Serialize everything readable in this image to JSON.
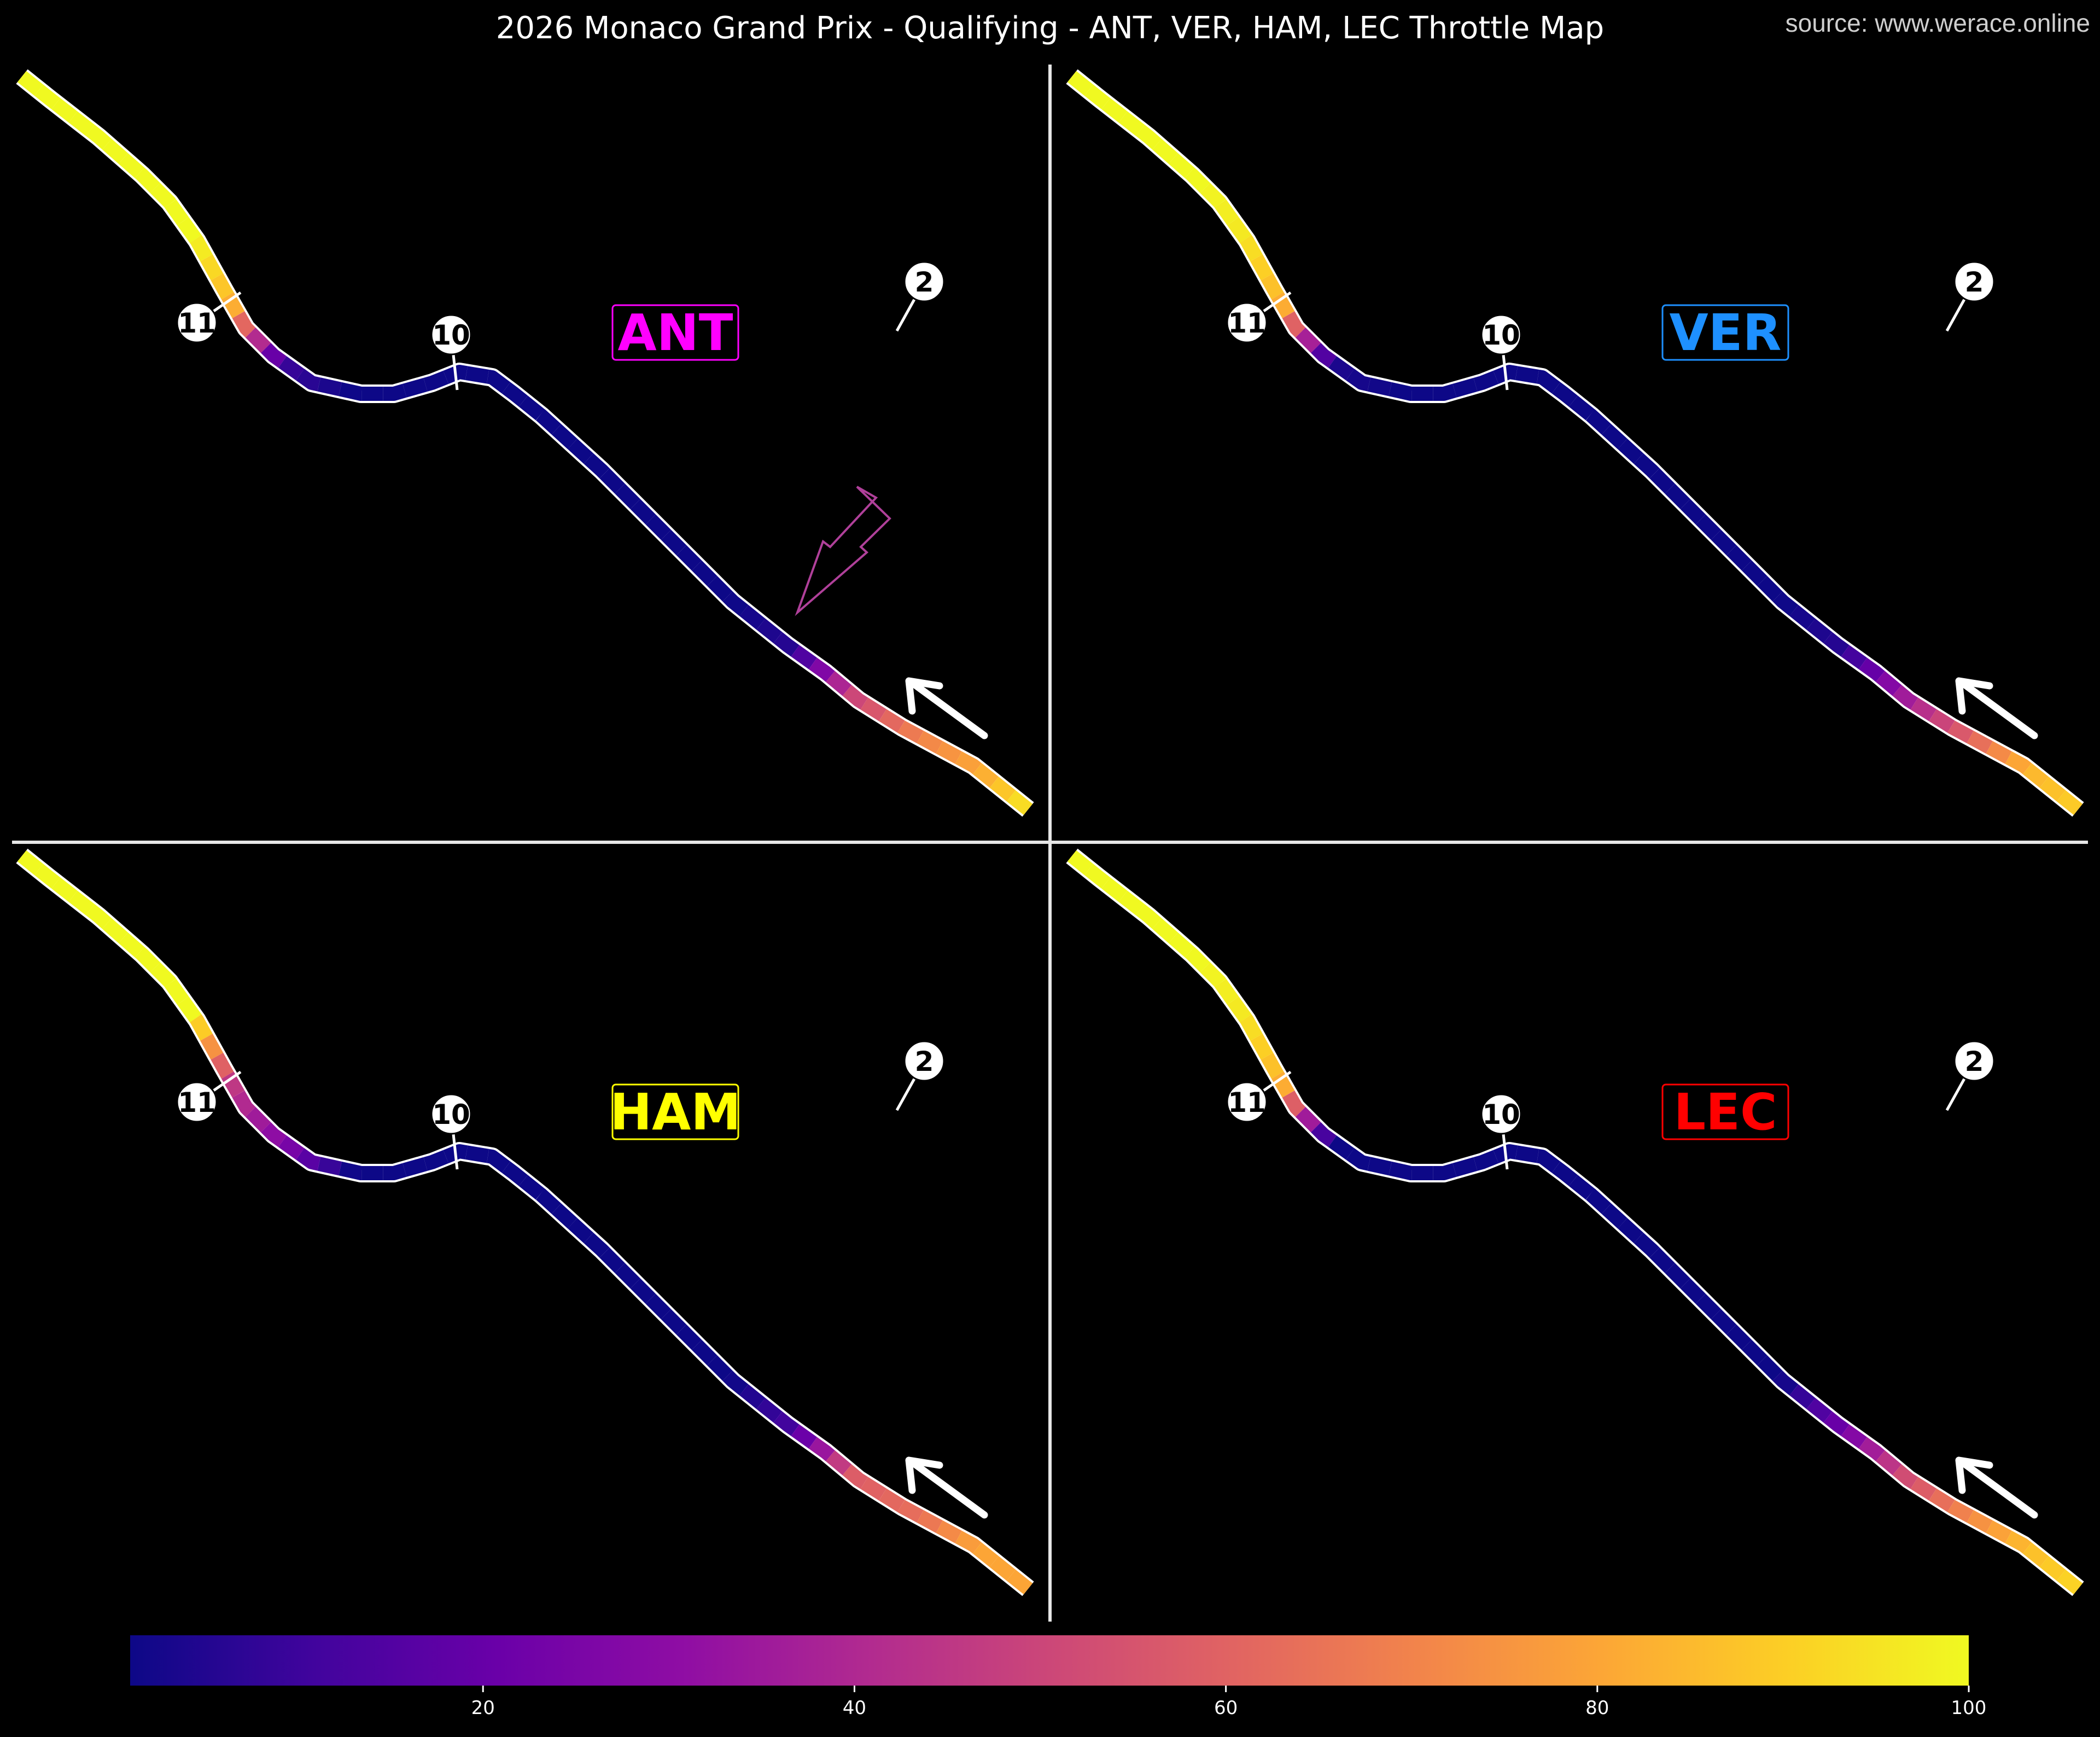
{
  "title": "2026 Monaco Grand Prix - Qualifying - ANT, VER, HAM, LEC Throttle Map",
  "source": "source: www.werace.online",
  "colors": {
    "background": "#000000",
    "divider": "#e6e6e6",
    "track_outline": "#ffffff",
    "ANT": "#ff00ff",
    "VER": "#1e90ff",
    "HAM": "#ffff00",
    "LEC": "#ff0000",
    "annotation_arrow": "#b0409a"
  },
  "chart_data": {
    "type": "track-heatmap",
    "metric": "throttle",
    "colormap": "plasma",
    "colorbar": {
      "vmin": 1,
      "vmax": 100,
      "ticks": [
        20,
        40,
        60,
        80,
        100
      ],
      "orientation": "horizontal",
      "placement": "bottom"
    },
    "track_sample_positions": [
      0,
      0.06,
      0.12,
      0.18,
      0.24,
      0.3,
      0.36,
      0.42,
      0.48,
      0.54,
      0.6,
      0.66,
      0.72,
      0.78,
      0.84,
      0.9,
      0.95,
      1
    ],
    "drivers": [
      {
        "code": "ANT",
        "color_key": "ANT",
        "throttle": [
          100,
          100,
          100,
          100,
          84,
          10,
          1,
          1,
          1,
          1,
          1,
          1,
          1,
          6,
          50,
          70,
          80,
          96
        ],
        "turn_labels": [
          "2",
          "10",
          "11"
        ],
        "highlight_arrow": true
      },
      {
        "code": "VER",
        "color_key": "VER",
        "throttle": [
          100,
          100,
          100,
          96,
          84,
          4,
          1,
          1,
          1,
          1,
          1,
          1,
          1,
          6,
          35,
          60,
          84,
          90
        ],
        "turn_labels": [
          "2",
          "10",
          "11"
        ],
        "highlight_arrow": false
      },
      {
        "code": "HAM",
        "color_key": "HAM",
        "throttle": [
          100,
          100,
          100,
          100,
          46,
          28,
          1,
          1,
          1,
          1,
          1,
          1,
          1,
          12,
          58,
          64,
          80,
          80
        ],
        "turn_labels": [
          "2",
          "10",
          "11"
        ],
        "highlight_arrow": false
      },
      {
        "code": "LEC",
        "color_key": "LEC",
        "throttle": [
          100,
          100,
          100,
          96,
          84,
          1,
          1,
          1,
          1,
          1,
          1,
          1,
          1,
          22,
          52,
          72,
          86,
          92
        ],
        "turn_labels": [
          "2",
          "10",
          "11"
        ],
        "highlight_arrow": false
      }
    ]
  }
}
